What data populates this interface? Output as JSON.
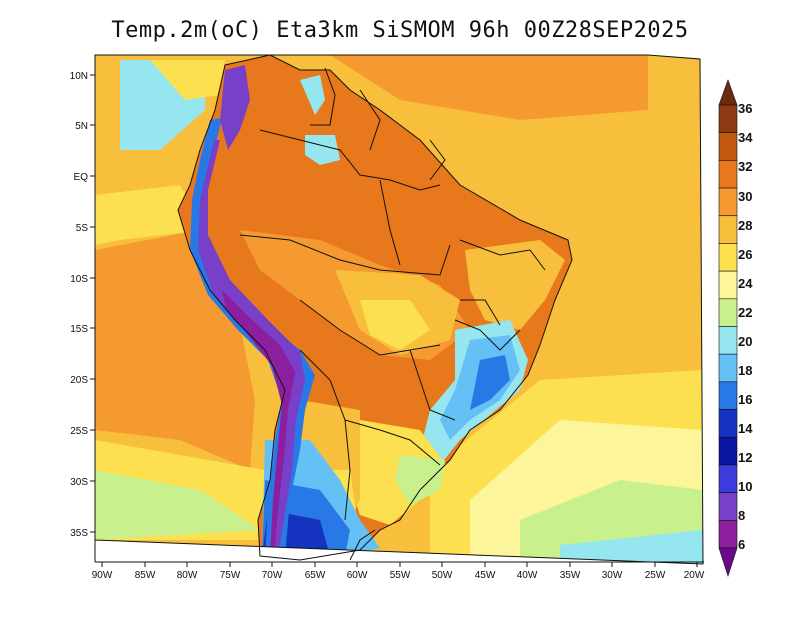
{
  "title": "Temp.2m(oC) Eta3km SiSMOM 96h 00Z28SEP2025",
  "map": {
    "variable": "2 m temperature",
    "units": "oC",
    "lat_labels": [
      "10N",
      "5N",
      "EQ",
      "5S",
      "10S",
      "15S",
      "20S",
      "25S",
      "30S",
      "35S"
    ],
    "lon_labels": [
      "90W",
      "85W",
      "80W",
      "75W",
      "70W",
      "65W",
      "60W",
      "55W",
      "50W",
      "45W",
      "40W",
      "35W",
      "30W",
      "25W",
      "20W"
    ]
  },
  "colorbar": {
    "labels": [
      "36",
      "34",
      "32",
      "30",
      "28",
      "26",
      "24",
      "22",
      "20",
      "18",
      "16",
      "14",
      "12",
      "10",
      "8",
      "6"
    ],
    "colors": [
      "#6e2a10",
      "#8f3a12",
      "#c45a12",
      "#e8781c",
      "#f59a30",
      "#f8bf3c",
      "#fde050",
      "#fdf59a",
      "#c8f08c",
      "#96e6f0",
      "#64c0f5",
      "#2878e6",
      "#1434c0",
      "#0a14a0",
      "#3c3cdc",
      "#7840c8",
      "#8c1ea0",
      "#6a0a8a"
    ]
  }
}
